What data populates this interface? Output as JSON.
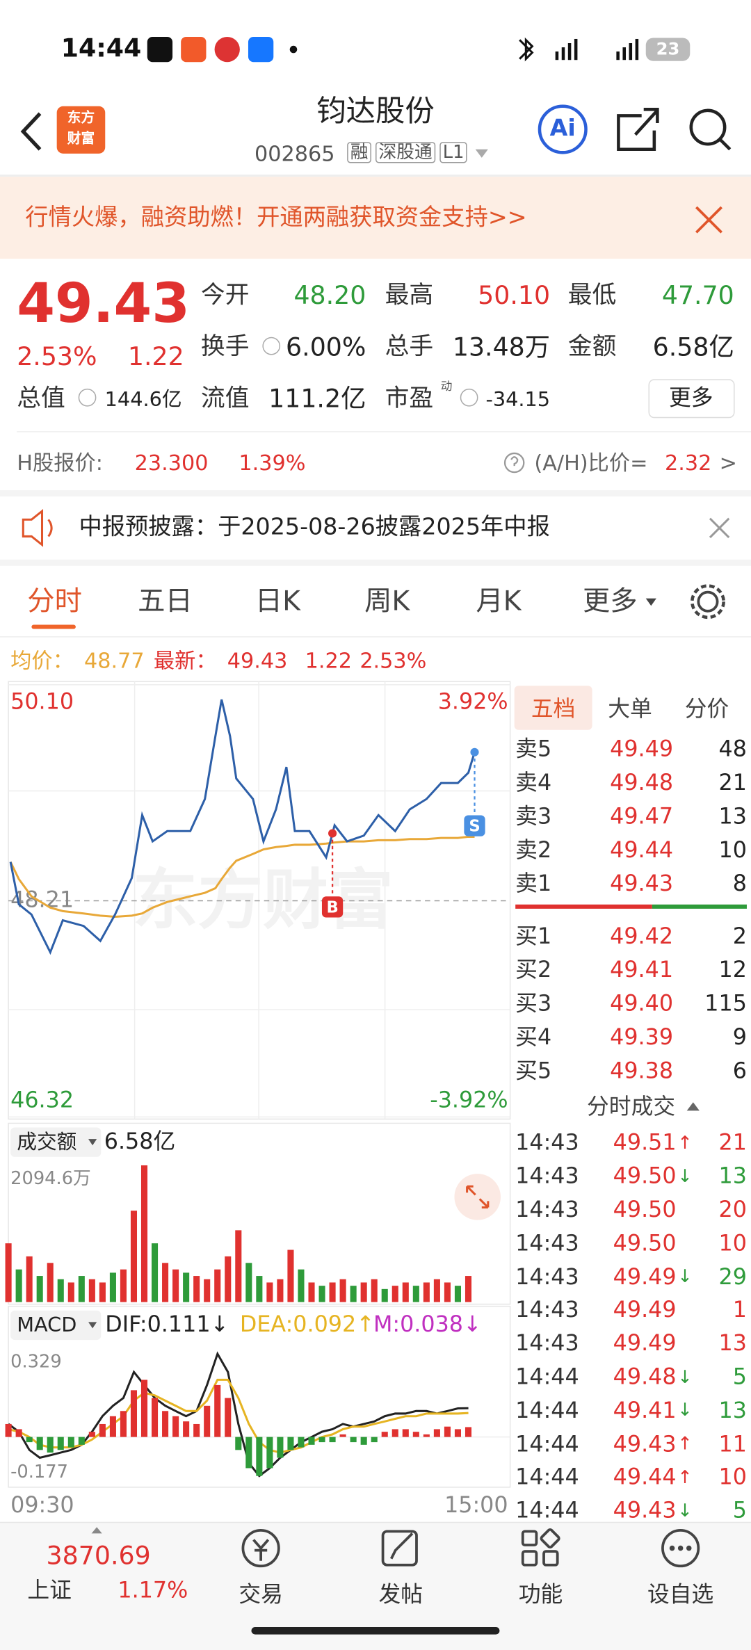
{
  "status_bar": {
    "time": "14:44",
    "battery": "23"
  },
  "header": {
    "logo": [
      "东方",
      "财富"
    ],
    "title": "钧达股份",
    "code": "002865",
    "tags": [
      "融",
      "深股通",
      "L1"
    ],
    "ai": "Ai"
  },
  "banner": {
    "text": "行情火爆，融资助燃！开通两融获取资金支持>>"
  },
  "quote": {
    "price": "49.43",
    "change_pct": "2.53%",
    "change": "1.22",
    "fields": [
      {
        "label": "今开",
        "value": "48.20"
      },
      {
        "label": "最高",
        "value": "50.10"
      },
      {
        "label": "最低",
        "value": "47.70"
      },
      {
        "label": "换手",
        "value": "6.00%"
      },
      {
        "label": "总手",
        "value": "13.48万"
      },
      {
        "label": "金额",
        "value": "6.58亿"
      },
      {
        "label": "总值",
        "value": "144.6亿"
      },
      {
        "label": "流值",
        "value": "111.2亿"
      },
      {
        "label": "市盈",
        "value": "-34.15"
      }
    ],
    "pe_superscript": "动",
    "more": "更多"
  },
  "h_share": {
    "label": "H股报价:",
    "price": "23.300",
    "change_pct": "1.39%",
    "ratio_label": "(A/H)比价=",
    "ratio": "2.32",
    "arrow": ">"
  },
  "notice": {
    "text": "中报预披露：于2025-08-26披露2025年中报"
  },
  "tabs": [
    "分时",
    "五日",
    "日K",
    "周K",
    "月K",
    "更多"
  ],
  "summary": {
    "avg": "48.77",
    "latest": "49.43",
    "change": "1.22",
    "change_pct": "2.53%"
  },
  "chart_data": [
    {
      "type": "line",
      "x": [
        1,
        5,
        11,
        20,
        26,
        36,
        44,
        51,
        59,
        64,
        69,
        76,
        87,
        94,
        99,
        102,
        106,
        109,
        117,
        122,
        128,
        133,
        137,
        144,
        152,
        156,
        162,
        170,
        177,
        185,
        192,
        200,
        207,
        215,
        220,
        223
      ],
      "xlim": [
        0,
        240
      ],
      "xticks": [
        {
          "value": 0,
          "label": "09:30"
        },
        {
          "value": 240,
          "label": "15:00"
        }
      ],
      "ylim": [
        46.32,
        50.1
      ],
      "yticks": [
        46.32,
        48.21,
        {
          "value": 50.1,
          "label": "50.10"
        }
      ],
      "y2lim": [
        -3.92,
        3.92
      ],
      "y2ticks": [
        {
          "value": -3.92,
          "label": "-3.92%"
        },
        {
          "value": 3.92,
          "label": "3.92%"
        }
      ],
      "series": [
        {
          "name": "均价：",
          "color": "#e8a838",
          "values": [
            48.55,
            48.4,
            48.25,
            48.15,
            48.12,
            48.1,
            48.08,
            48.07,
            48.08,
            48.1,
            48.15,
            48.2,
            48.25,
            48.28,
            48.32,
            48.4,
            48.5,
            48.56,
            48.62,
            48.66,
            48.68,
            48.69,
            48.7,
            48.7,
            48.71,
            48.72,
            48.73,
            48.73,
            48.74,
            48.74,
            48.75,
            48.75,
            48.76,
            48.76,
            48.77,
            48.77
          ]
        },
        {
          "name": "最新：",
          "color": "#2d5fa8",
          "values": [
            48.55,
            48.18,
            48.09,
            47.76,
            48.04,
            47.99,
            47.86,
            48.09,
            48.41,
            48.96,
            48.73,
            48.82,
            48.82,
            49.1,
            49.65,
            49.97,
            49.65,
            49.28,
            49.1,
            48.73,
            49.01,
            49.38,
            48.82,
            48.82,
            48.59,
            48.87,
            48.73,
            48.78,
            48.96,
            48.82,
            49.01,
            49.1,
            49.24,
            49.24,
            49.33,
            49.51
          ]
        }
      ],
      "markers": [
        {
          "label": "B",
          "x": 155
        },
        {
          "label": "S",
          "x": 223
        }
      ]
    },
    {
      "type": "bar",
      "title": "成交额",
      "total": "6.58亿",
      "x": [
        0,
        5,
        10,
        15,
        20,
        25,
        30,
        35,
        40,
        45,
        50,
        55,
        60,
        65,
        70,
        75,
        80,
        85,
        90,
        95,
        100,
        105,
        110,
        115,
        120,
        125,
        130,
        135,
        140,
        145,
        150,
        155,
        160,
        165,
        170,
        175,
        180,
        185,
        190,
        195,
        200,
        205,
        210,
        215,
        220
      ],
      "xlim": [
        0,
        240
      ],
      "ylim": [
        0,
        2094.6
      ],
      "yticks": [
        {
          "value": 2094.6,
          "label": "2094.6万"
        }
      ],
      "values": [
        900,
        500,
        700,
        400,
        600,
        350,
        300,
        400,
        350,
        300,
        450,
        500,
        1400,
        2094.6,
        900,
        600,
        500,
        450,
        400,
        350,
        500,
        700,
        1100,
        600,
        400,
        300,
        350,
        800,
        500,
        300,
        250,
        300,
        350,
        250,
        300,
        350,
        200,
        250,
        300,
        250,
        300,
        350,
        300,
        250,
        400
      ],
      "colors": [
        "#e0312f",
        "#2e9b3a",
        "#e0312f",
        "#2e9b3a",
        "#e0312f",
        "#2e9b3a",
        "#e0312f",
        "#2e9b3a",
        "#e0312f",
        "#e0312f",
        "#2e9b3a",
        "#e0312f",
        "#e0312f",
        "#e0312f",
        "#2e9b3a",
        "#e0312f",
        "#e0312f",
        "#2e9b3a",
        "#e0312f",
        "#e0312f",
        "#e0312f",
        "#e0312f",
        "#e0312f",
        "#2e9b3a",
        "#2e9b3a",
        "#e0312f",
        "#e0312f",
        "#e0312f",
        "#2e9b3a",
        "#e0312f",
        "#2e9b3a",
        "#e0312f",
        "#e0312f",
        "#2e9b3a",
        "#e0312f",
        "#e0312f",
        "#2e9b3a",
        "#e0312f",
        "#e0312f",
        "#2e9b3a",
        "#e0312f",
        "#e0312f",
        "#e0312f",
        "#2e9b3a",
        "#e0312f"
      ]
    },
    {
      "type": "line",
      "title": "MACD",
      "x": [
        0,
        5,
        10,
        15,
        20,
        25,
        30,
        35,
        40,
        45,
        50,
        55,
        60,
        65,
        70,
        75,
        80,
        85,
        90,
        95,
        100,
        105,
        110,
        115,
        120,
        125,
        130,
        135,
        140,
        145,
        150,
        155,
        160,
        165,
        170,
        175,
        180,
        185,
        190,
        195,
        200,
        205,
        210,
        215,
        220
      ],
      "xlim": [
        0,
        240
      ],
      "ylim": [
        -0.177,
        0.329
      ],
      "yticks": [
        -0.177,
        0.329
      ],
      "series": [
        {
          "name": "DIF:0.111↓",
          "color": "#222222",
          "values": [
            0.05,
            0.02,
            -0.05,
            -0.08,
            -0.07,
            -0.06,
            -0.05,
            -0.03,
            0.02,
            0.08,
            0.12,
            0.15,
            0.25,
            0.2,
            0.15,
            0.12,
            0.1,
            0.08,
            0.1,
            0.2,
            0.32,
            0.25,
            0.05,
            -0.1,
            -0.15,
            -0.12,
            -0.08,
            -0.05,
            -0.02,
            0.0,
            0.02,
            0.03,
            0.05,
            0.04,
            0.05,
            0.06,
            0.08,
            0.09,
            0.09,
            0.1,
            0.1,
            0.09,
            0.1,
            0.11,
            0.111
          ]
        },
        {
          "name": "DEA:0.092↑",
          "color": "#e6b422",
          "values": [
            0.03,
            0.02,
            0.0,
            -0.03,
            -0.04,
            -0.04,
            -0.04,
            -0.03,
            -0.01,
            0.02,
            0.05,
            0.08,
            0.14,
            0.17,
            0.16,
            0.14,
            0.12,
            0.1,
            0.1,
            0.14,
            0.22,
            0.22,
            0.15,
            0.05,
            -0.02,
            -0.05,
            -0.06,
            -0.05,
            -0.04,
            -0.02,
            0.0,
            0.01,
            0.03,
            0.04,
            0.04,
            0.05,
            0.06,
            0.07,
            0.08,
            0.08,
            0.09,
            0.09,
            0.09,
            0.09,
            0.092
          ]
        },
        {
          "name": "M:0.038↓",
          "color": "#c030c0",
          "type": "bar",
          "values": [
            0.05,
            0.03,
            -0.02,
            -0.05,
            -0.06,
            -0.05,
            -0.04,
            -0.03,
            0.02,
            0.05,
            0.08,
            0.1,
            0.18,
            0.22,
            0.15,
            0.1,
            0.08,
            0.06,
            0.05,
            0.12,
            0.2,
            0.15,
            -0.05,
            -0.12,
            -0.15,
            -0.12,
            -0.08,
            -0.05,
            -0.04,
            -0.03,
            -0.02,
            -0.02,
            0.01,
            -0.02,
            -0.03,
            -0.02,
            0.02,
            0.03,
            0.03,
            0.02,
            0.01,
            0.03,
            0.04,
            0.03,
            0.038
          ]
        }
      ]
    }
  ],
  "order_book": {
    "tabs": [
      "五档",
      "大单",
      "分价"
    ],
    "asks": [
      [
        "卖5",
        "49.49",
        "48"
      ],
      [
        "卖4",
        "49.48",
        "21"
      ],
      [
        "卖3",
        "49.47",
        "13"
      ],
      [
        "卖2",
        "49.44",
        "10"
      ],
      [
        "卖1",
        "49.43",
        "8"
      ]
    ],
    "bids": [
      [
        "买1",
        "49.42",
        "2"
      ],
      [
        "买2",
        "49.41",
        "12"
      ],
      [
        "买3",
        "49.40",
        "115"
      ],
      [
        "买4",
        "49.39",
        "9"
      ],
      [
        "买5",
        "49.38",
        "6"
      ]
    ]
  },
  "trades": {
    "title": "分时成交",
    "rows": [
      {
        "time": "14:43",
        "price": "49.51",
        "arrow": "↑",
        "volume": "21"
      },
      {
        "time": "14:43",
        "price": "49.50",
        "arrow": "↓",
        "volume": "13"
      },
      {
        "time": "14:43",
        "price": "49.50",
        "volume": "20"
      },
      {
        "time": "14:43",
        "price": "49.50",
        "volume": "10"
      },
      {
        "time": "14:43",
        "price": "49.49",
        "arrow": "↓",
        "volume": "29"
      },
      {
        "time": "14:43",
        "price": "49.49",
        "volume": "1"
      },
      {
        "time": "14:43",
        "price": "49.49",
        "volume": "13"
      },
      {
        "time": "14:44",
        "price": "49.48",
        "arrow": "↓",
        "volume": "5"
      },
      {
        "time": "14:44",
        "price": "49.41",
        "arrow": "↓",
        "volume": "13"
      },
      {
        "time": "14:44",
        "price": "49.43",
        "arrow": "↑",
        "volume": "11"
      },
      {
        "time": "14:44",
        "price": "49.44",
        "arrow": "↑",
        "volume": "10"
      },
      {
        "time": "14:44",
        "price": "49.43",
        "arrow": "↓",
        "volume": "5"
      }
    ]
  },
  "bottom_bar": {
    "index_value": "3870.69",
    "index_name": "上证",
    "index_change": "1.17%",
    "nav": [
      "交易",
      "发帖",
      "功能",
      "设自选"
    ]
  }
}
